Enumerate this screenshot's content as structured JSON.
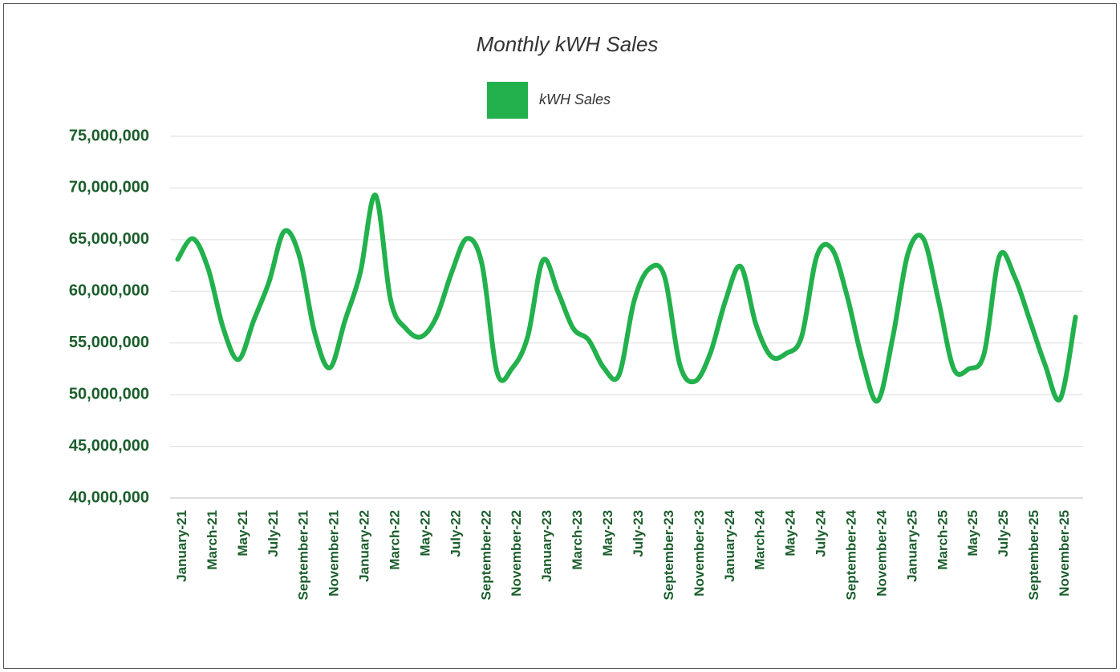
{
  "chart_data": {
    "type": "line",
    "title": "Monthly kWH Sales",
    "categories": [
      "January-21",
      null,
      "March-21",
      null,
      "May-21",
      null,
      "July-21",
      null,
      "September-21",
      null,
      "November-21",
      null,
      "January-22",
      null,
      "March-22",
      null,
      "May-22",
      null,
      "July-22",
      null,
      "September-22",
      null,
      "November-22",
      null,
      "January-23",
      null,
      "March-23",
      null,
      "May-23",
      null,
      "July-23",
      null,
      "September-23",
      null,
      "November-23",
      null,
      "January-24",
      null,
      "March-24",
      null,
      "May-24",
      null,
      "July-24",
      null,
      "September-24",
      null,
      "November-24",
      null,
      "January-25",
      null,
      "March-25",
      null,
      "May-25",
      null,
      "July-25",
      null,
      "September-25",
      null,
      "November-25",
      null
    ],
    "series": [
      {
        "name": "kWH Sales",
        "color": "#22b14c",
        "values": [
          63100000,
          65100000,
          62200000,
          56400000,
          53400000,
          57200000,
          60900000,
          65800000,
          63400000,
          56000000,
          52600000,
          57200000,
          61800000,
          69300000,
          59100000,
          56400000,
          55600000,
          57500000,
          61800000,
          65100000,
          62600000,
          52100000,
          52600000,
          55600000,
          63000000,
          59900000,
          56400000,
          55300000,
          52600000,
          51900000,
          59100000,
          62200000,
          61400000,
          52900000,
          51300000,
          54000000,
          59100000,
          62400000,
          56800000,
          53700000,
          54000000,
          55600000,
          63400000,
          64100000,
          59500000,
          53300000,
          49400000,
          55600000,
          63700000,
          65100000,
          59100000,
          52500000,
          52500000,
          54000000,
          63400000,
          61400000,
          57200000,
          52900000,
          49600000,
          57500000
        ]
      }
    ],
    "ylim": [
      40000000,
      75000000
    ],
    "yticks": [
      {
        "value": 40000000,
        "label": "40,000,000"
      },
      {
        "value": 45000000,
        "label": "45,000,000"
      },
      {
        "value": 50000000,
        "label": "50,000,000"
      },
      {
        "value": 55000000,
        "label": "55,000,000"
      },
      {
        "value": 60000000,
        "label": "60,000,000"
      },
      {
        "value": 65000000,
        "label": "65,000,000"
      },
      {
        "value": 70000000,
        "label": "70,000,000"
      },
      {
        "value": 75000000,
        "label": "75,000,000"
      }
    ],
    "grid": true,
    "legend": "top"
  }
}
